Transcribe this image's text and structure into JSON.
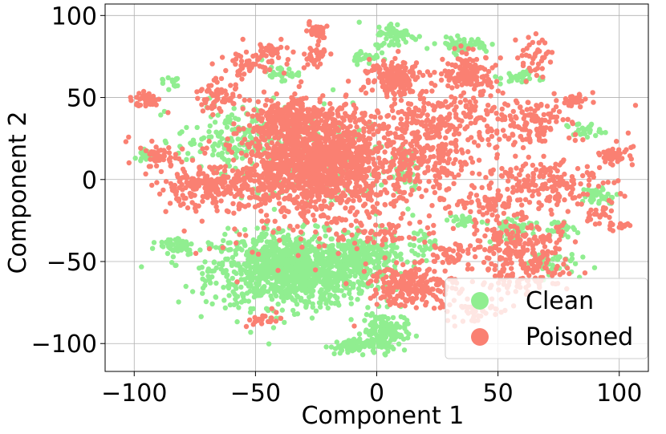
{
  "chart_data": {
    "type": "scatter",
    "xlabel": "Component 1",
    "ylabel": "Component 2",
    "xlim": [
      -112,
      112
    ],
    "ylim": [
      -117,
      107
    ],
    "x_ticks": [
      -100,
      -50,
      0,
      50,
      100
    ],
    "x_tick_labels": [
      "−100",
      "−50",
      "0",
      "50",
      "100"
    ],
    "y_ticks": [
      -100,
      -50,
      0,
      50,
      100
    ],
    "y_tick_labels": [
      "−100",
      "−50",
      "0",
      "50",
      "100"
    ],
    "grid": true,
    "legend_position": "bottom-right",
    "series": [
      {
        "name": "Clean",
        "color": "#90EE90",
        "clusters": [
          {
            "cx": -35,
            "cy": -55,
            "sx": 22,
            "sy": 15,
            "n": 1100
          },
          {
            "cx": -5,
            "cy": -48,
            "sx": 10,
            "sy": 9,
            "n": 220
          },
          {
            "cx": 3,
            "cy": -93,
            "sx": 6,
            "sy": 8,
            "n": 160
          },
          {
            "cx": -12,
            "cy": -102,
            "sx": 5,
            "sy": 3,
            "n": 60
          },
          {
            "cx": -60,
            "cy": 25,
            "sx": 15,
            "sy": 12,
            "n": 140
          },
          {
            "cx": -82,
            "cy": -40,
            "sx": 5,
            "sy": 4,
            "n": 50
          },
          {
            "cx": 12,
            "cy": 5,
            "sx": 4,
            "sy": 12,
            "n": 45
          },
          {
            "cx": 8,
            "cy": 88,
            "sx": 6,
            "sy": 5,
            "n": 60
          },
          {
            "cx": -5,
            "cy": 75,
            "sx": 4,
            "sy": 3,
            "n": 30
          },
          {
            "cx": 36,
            "cy": 82,
            "sx": 7,
            "sy": 3,
            "n": 50
          },
          {
            "cx": 55,
            "cy": -30,
            "sx": 6,
            "sy": 6,
            "n": 50
          },
          {
            "cx": 75,
            "cy": -30,
            "sx": 5,
            "sy": 3,
            "n": 30
          },
          {
            "cx": 92,
            "cy": -10,
            "sx": 5,
            "sy": 4,
            "n": 40
          },
          {
            "cx": 60,
            "cy": 62,
            "sx": 6,
            "sy": 3,
            "n": 30
          },
          {
            "cx": 85,
            "cy": 30,
            "sx": 5,
            "sy": 3,
            "n": 25
          },
          {
            "cx": -40,
            "cy": 65,
            "sx": 5,
            "sy": 3,
            "n": 25
          },
          {
            "cx": 20,
            "cy": -40,
            "sx": 4,
            "sy": 5,
            "n": 30
          },
          {
            "cx": 35,
            "cy": -25,
            "sx": 4,
            "sy": 3,
            "n": 25
          },
          {
            "cx": 70,
            "cy": -50,
            "sx": 8,
            "sy": 5,
            "n": 40
          },
          {
            "cx": -95,
            "cy": 15,
            "sx": 3,
            "sy": 3,
            "n": 20
          },
          {
            "cx": -85,
            "cy": 60,
            "sx": 3,
            "sy": 3,
            "n": 15
          },
          {
            "cx": -30,
            "cy": 10,
            "sx": 25,
            "sy": 25,
            "n": 150
          }
        ]
      },
      {
        "name": "Poisoned",
        "color": "#FA8072",
        "clusters": [
          {
            "cx": -25,
            "cy": 10,
            "sx": 20,
            "sy": 20,
            "n": 1400
          },
          {
            "cx": -35,
            "cy": 38,
            "sx": 10,
            "sy": 8,
            "n": 220
          },
          {
            "cx": -70,
            "cy": -5,
            "sx": 14,
            "sy": 8,
            "n": 220
          },
          {
            "cx": 8,
            "cy": 62,
            "sx": 7,
            "sy": 7,
            "n": 160
          },
          {
            "cx": 38,
            "cy": 65,
            "sx": 7,
            "sy": 7,
            "n": 140
          },
          {
            "cx": 25,
            "cy": 35,
            "sx": 18,
            "sy": 12,
            "n": 220
          },
          {
            "cx": 20,
            "cy": 10,
            "sx": 14,
            "sy": 12,
            "n": 140
          },
          {
            "cx": 15,
            "cy": -65,
            "sx": 12,
            "sy": 8,
            "n": 220
          },
          {
            "cx": 60,
            "cy": -55,
            "sx": 14,
            "sy": 10,
            "n": 160
          },
          {
            "cx": 62,
            "cy": 35,
            "sx": 12,
            "sy": 10,
            "n": 120
          },
          {
            "cx": 70,
            "cy": 0,
            "sx": 15,
            "sy": 10,
            "n": 160
          },
          {
            "cx": 60,
            "cy": -35,
            "sx": 12,
            "sy": 8,
            "n": 110
          },
          {
            "cx": -95,
            "cy": 48,
            "sx": 4,
            "sy": 3,
            "n": 40
          },
          {
            "cx": -90,
            "cy": 15,
            "sx": 5,
            "sy": 5,
            "n": 40
          },
          {
            "cx": -65,
            "cy": 50,
            "sx": 6,
            "sy": 6,
            "n": 60
          },
          {
            "cx": -55,
            "cy": 70,
            "sx": 6,
            "sy": 4,
            "n": 40
          },
          {
            "cx": -45,
            "cy": 78,
            "sx": 5,
            "sy": 4,
            "n": 40
          },
          {
            "cx": -25,
            "cy": 90,
            "sx": 3,
            "sy": 3,
            "n": 30
          },
          {
            "cx": -25,
            "cy": 75,
            "sx": 3,
            "sy": 5,
            "n": 30
          },
          {
            "cx": 97,
            "cy": 15,
            "sx": 4,
            "sy": 4,
            "n": 40
          },
          {
            "cx": 82,
            "cy": 48,
            "sx": 5,
            "sy": 3,
            "n": 30
          },
          {
            "cx": 65,
            "cy": 75,
            "sx": 5,
            "sy": 8,
            "n": 40
          },
          {
            "cx": 90,
            "cy": -20,
            "sx": 4,
            "sy": 4,
            "n": 20
          },
          {
            "cx": 100,
            "cy": -28,
            "sx": 3,
            "sy": 2,
            "n": 15
          },
          {
            "cx": 45,
            "cy": -15,
            "sx": 10,
            "sy": 6,
            "n": 60
          },
          {
            "cx": 30,
            "cy": -45,
            "sx": 6,
            "sy": 5,
            "n": 40
          },
          {
            "cx": 40,
            "cy": -80,
            "sx": 8,
            "sy": 5,
            "n": 40
          },
          {
            "cx": 0,
            "cy": -30,
            "sx": 8,
            "sy": 8,
            "n": 40
          },
          {
            "cx": -45,
            "cy": -85,
            "sx": 5,
            "sy": 3,
            "n": 20
          },
          {
            "cx": 0,
            "cy": 0,
            "sx": 60,
            "sy": 45,
            "n": 300
          }
        ]
      }
    ]
  }
}
